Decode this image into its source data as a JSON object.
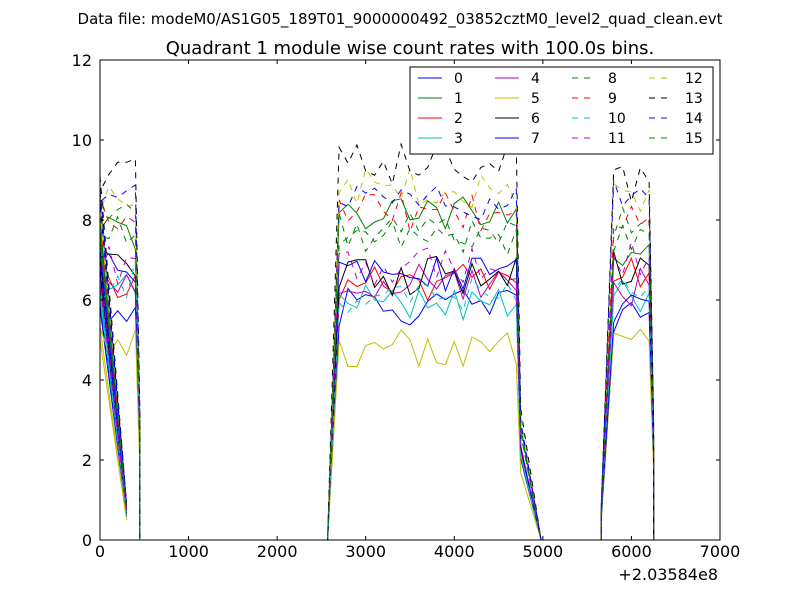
{
  "chart_data": {
    "type": "line",
    "suptitle": "Data file: modeM0/AS1G05_189T01_9000000492_03852cztM0_level2_quad_clean.evt",
    "title": "Quadrant 1 module wise count rates with 100.0s bins.",
    "xlabel": "",
    "ylabel": "",
    "xlim": [
      0,
      7000
    ],
    "ylim": [
      0,
      12
    ],
    "x_ticks": [
      0,
      1000,
      2000,
      3000,
      4000,
      5000,
      6000,
      7000
    ],
    "y_ticks": [
      0,
      2,
      4,
      6,
      8,
      10,
      12
    ],
    "x_offset_label": "+2.03584e8",
    "legend_position": "top-right",
    "segments": [
      {
        "x_start": 0,
        "x_end": 400,
        "ramp_x_start": 300,
        "zero_x": 450,
        "lead_x": 0,
        "lead_factor": 1.0
      },
      {
        "x_start": 2700,
        "x_end": 4700,
        "ramp_x_start": 2570,
        "zero_x": 4980,
        "lead_x": 2570,
        "lead_factor": 0.0
      },
      {
        "x_start": 5800,
        "x_end": 6200,
        "ramp_x_start": 5660,
        "zero_x": 6250,
        "lead_x": 5660,
        "lead_factor": 0.1
      }
    ],
    "series": [
      {
        "name": "0",
        "color": "#0000ff",
        "dash": false,
        "levels": [
          5.8,
          5.8,
          5.6
        ]
      },
      {
        "name": "1",
        "color": "#008000",
        "dash": false,
        "levels": [
          7.6,
          8.1,
          7.3
        ]
      },
      {
        "name": "2",
        "color": "#ff0000",
        "dash": false,
        "levels": [
          6.3,
          6.4,
          6.6
        ]
      },
      {
        "name": "3",
        "color": "#00bfbf",
        "dash": false,
        "levels": [
          6.2,
          6.0,
          6.1
        ]
      },
      {
        "name": "4",
        "color": "#bf00bf",
        "dash": false,
        "levels": [
          6.6,
          6.5,
          6.3
        ]
      },
      {
        "name": "5",
        "color": "#bfbf00",
        "dash": false,
        "levels": [
          5.0,
          4.8,
          4.9
        ]
      },
      {
        "name": "6",
        "color": "#000000",
        "dash": false,
        "levels": [
          6.7,
          6.6,
          6.8
        ]
      },
      {
        "name": "7",
        "color": "#0000ff",
        "dash": false,
        "levels": [
          6.9,
          6.7,
          5.9
        ]
      },
      {
        "name": "8",
        "color": "#008000",
        "dash": true,
        "levels": [
          8.0,
          7.6,
          7.9
        ]
      },
      {
        "name": "9",
        "color": "#ff0000",
        "dash": true,
        "levels": [
          8.1,
          8.2,
          8.0
        ]
      },
      {
        "name": "10",
        "color": "#00bfbf",
        "dash": true,
        "levels": [
          6.5,
          6.1,
          6.3
        ]
      },
      {
        "name": "11",
        "color": "#bf00bf",
        "dash": true,
        "levels": [
          6.9,
          6.8,
          7.0
        ]
      },
      {
        "name": "12",
        "color": "#bfbf00",
        "dash": true,
        "levels": [
          8.6,
          8.8,
          8.7
        ]
      },
      {
        "name": "13",
        "color": "#000000",
        "dash": true,
        "levels": [
          9.1,
          9.4,
          8.9
        ]
      },
      {
        "name": "14",
        "color": "#0000ff",
        "dash": true,
        "levels": [
          8.8,
          8.5,
          8.5
        ]
      },
      {
        "name": "15",
        "color": "#008000",
        "dash": true,
        "levels": [
          7.9,
          7.7,
          7.6
        ]
      }
    ]
  }
}
